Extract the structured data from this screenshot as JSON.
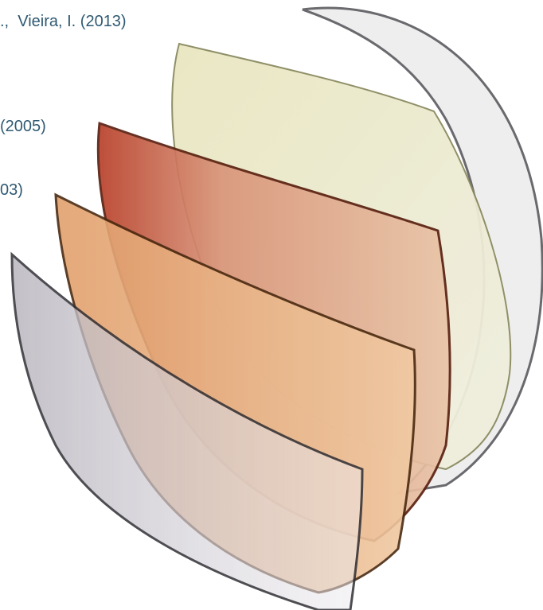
{
  "citations": [
    ".,  Vieira, I. (2013)",
    "(2005)",
    "03)"
  ]
}
